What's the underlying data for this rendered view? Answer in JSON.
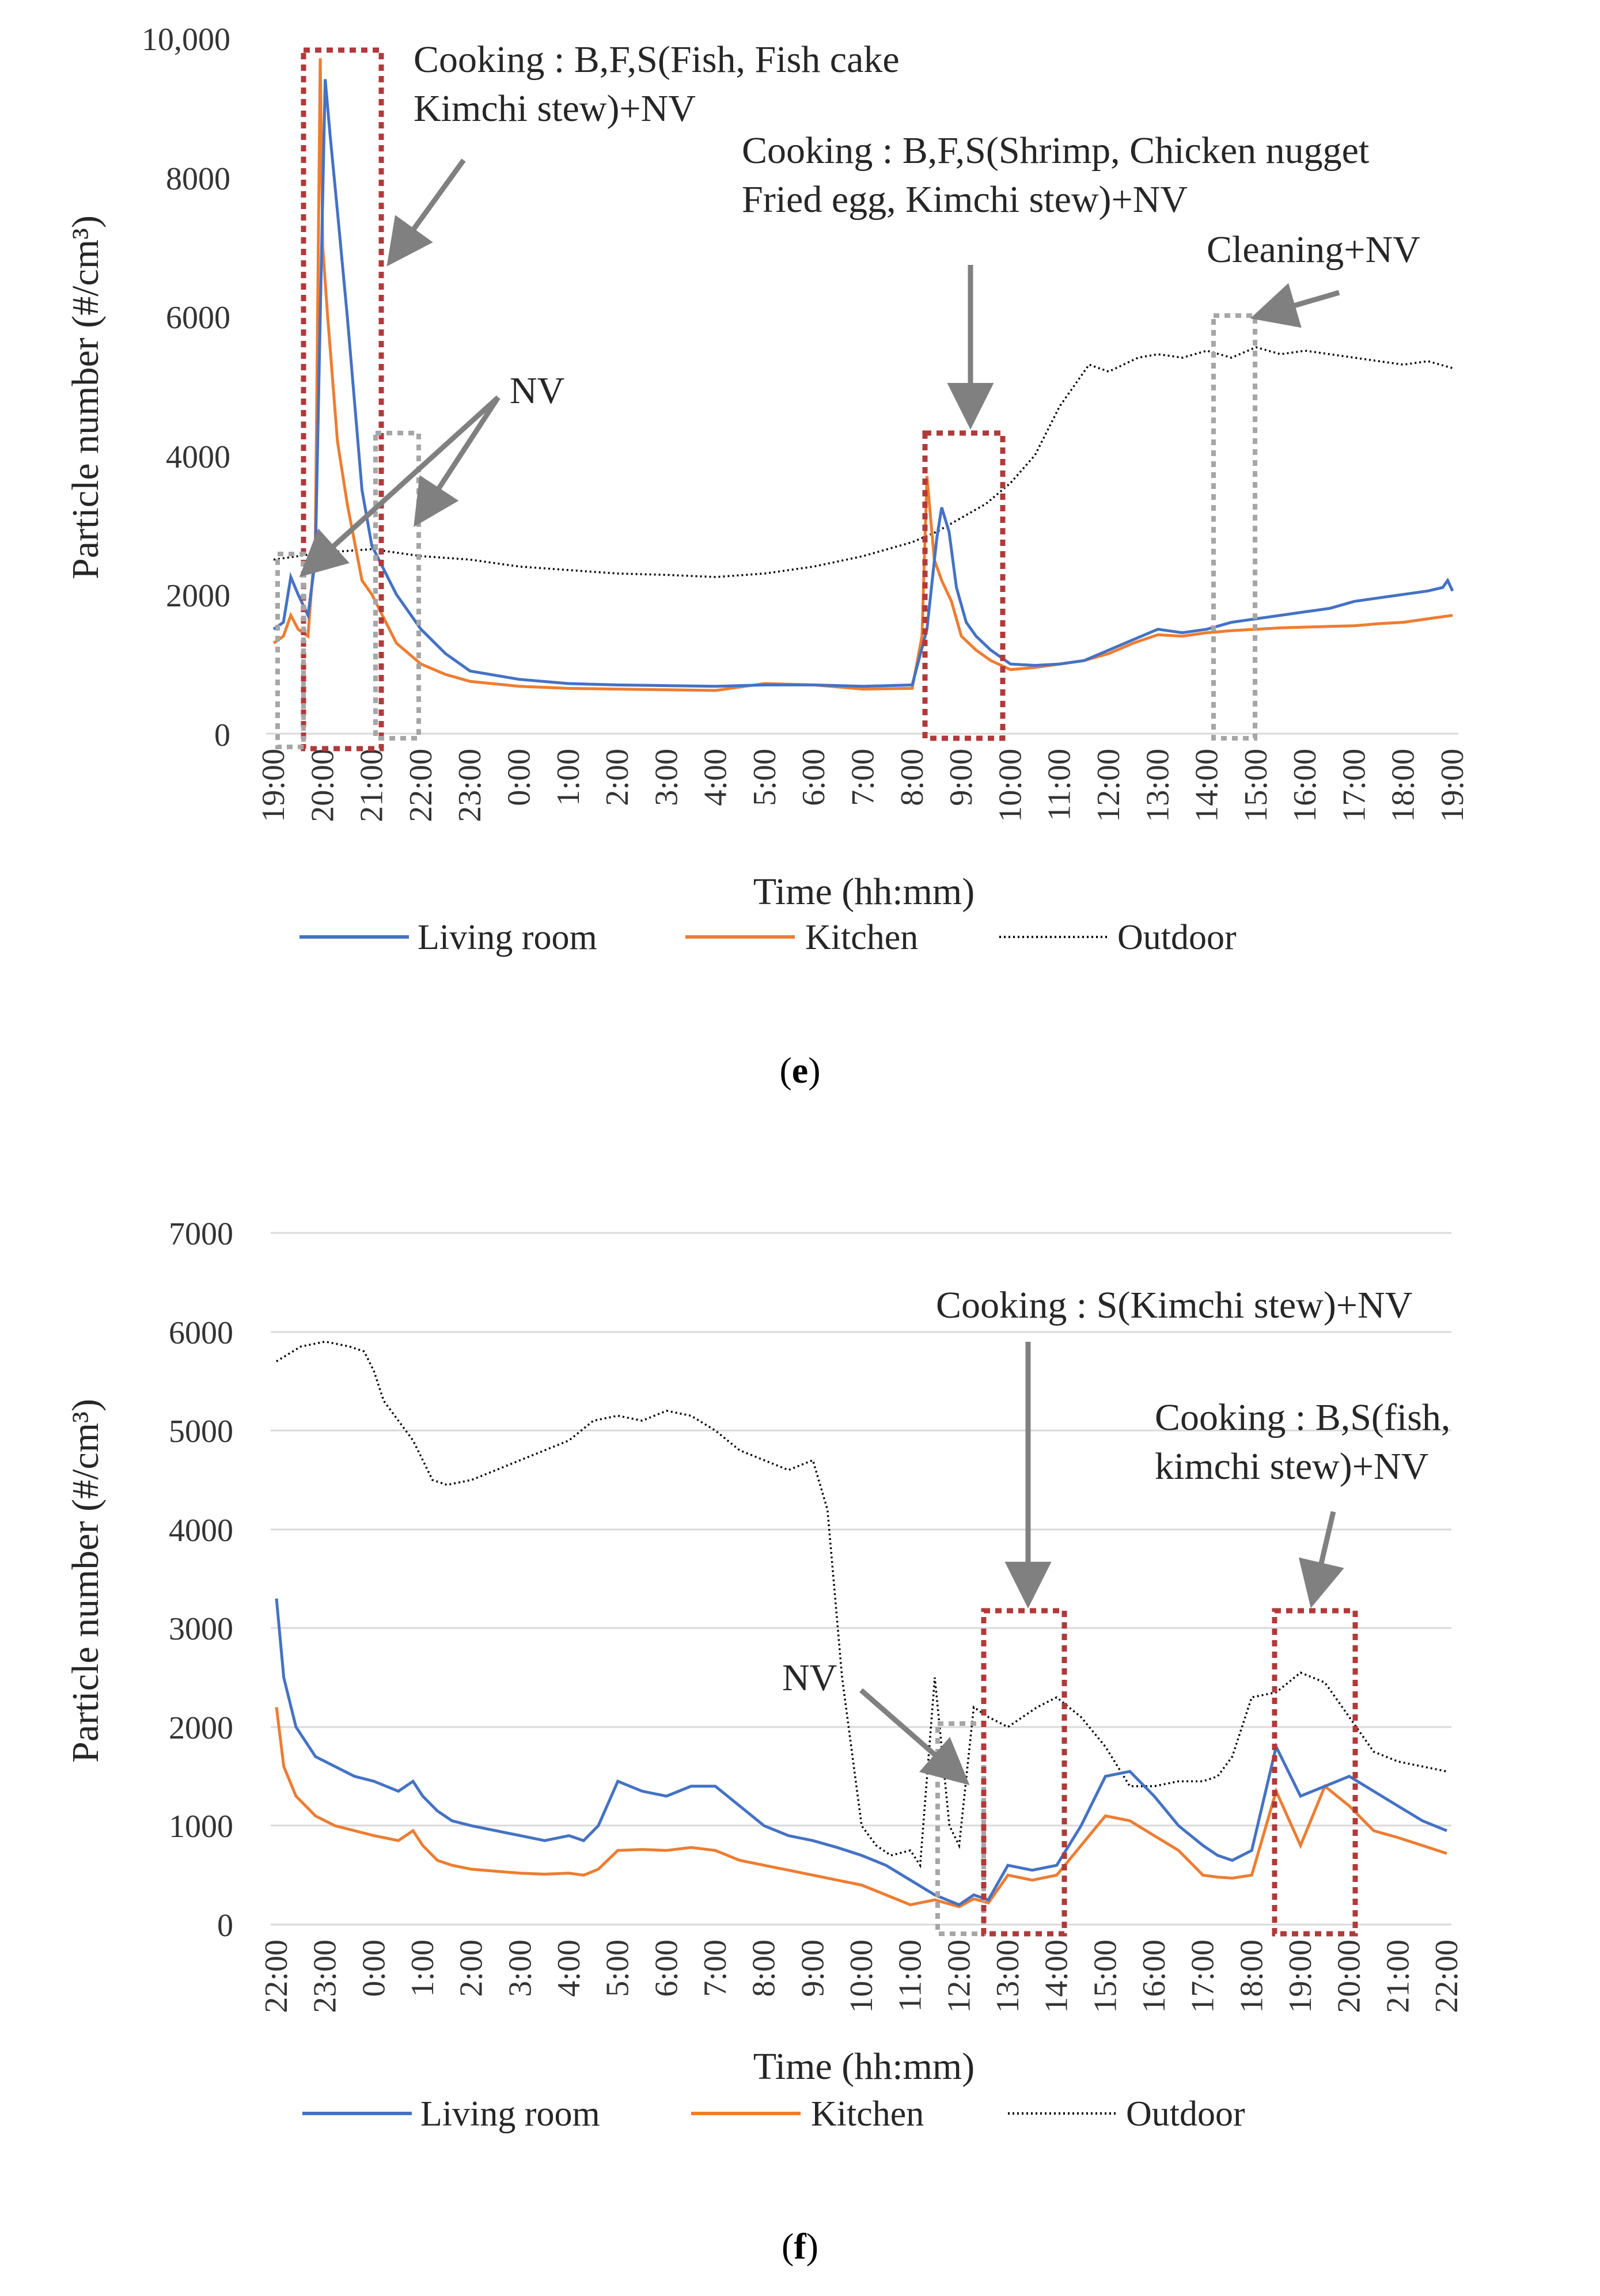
{
  "chart_data": [
    {
      "panel": "e",
      "type": "line",
      "xlabel": "Time (hh:mm)",
      "ylabel": "Particle number (#/cm³)",
      "y_ticks": [
        "0",
        "2000",
        "4000",
        "6000",
        "8000",
        "10,000"
      ],
      "ylim": [
        0,
        10000
      ],
      "x_ticks": [
        "19:00",
        "20:00",
        "21:00",
        "22:00",
        "23:00",
        "0:00",
        "1:00",
        "2:00",
        "3:00",
        "4:00",
        "5:00",
        "6:00",
        "7:00",
        "8:00",
        "9:00",
        "10:00",
        "11:00",
        "12:00",
        "13:00",
        "14:00",
        "15:00",
        "16:00",
        "17:00",
        "18:00",
        "19:00"
      ],
      "xlim": [
        0,
        24
      ],
      "legend": [
        "Living room",
        "Kitchen",
        "Outdoor"
      ],
      "series": [
        {
          "name": "Living room",
          "color": "#4472C4",
          "dash": "solid",
          "x": [
            0,
            0.2,
            0.35,
            0.5,
            0.7,
            0.85,
            0.95,
            1.05,
            1.15,
            1.3,
            1.5,
            1.8,
            2,
            2.5,
            3,
            3.5,
            4,
            5,
            6,
            7,
            8,
            9,
            10,
            11,
            12,
            13,
            13.3,
            13.5,
            13.6,
            13.75,
            13.9,
            14.1,
            14.3,
            14.6,
            15,
            15.5,
            16,
            16.5,
            17,
            17.5,
            18,
            18.5,
            19,
            19.5,
            20,
            20.5,
            21,
            21.5,
            22,
            22.5,
            23,
            23.5,
            23.8,
            23.9,
            24
          ],
          "y": [
            1500,
            1600,
            2250,
            2000,
            1700,
            2500,
            6000,
            9400,
            8600,
            7500,
            6000,
            3500,
            2700,
            2000,
            1500,
            1150,
            900,
            780,
            720,
            700,
            690,
            680,
            700,
            700,
            680,
            700,
            1500,
            2800,
            3250,
            2900,
            2100,
            1600,
            1400,
            1200,
            1000,
            980,
            1000,
            1050,
            1200,
            1350,
            1500,
            1450,
            1500,
            1600,
            1650,
            1700,
            1750,
            1800,
            1900,
            1950,
            2000,
            2050,
            2100,
            2200,
            2050
          ]
        },
        {
          "name": "Kitchen",
          "color": "#ED7D31",
          "dash": "solid",
          "x": [
            0,
            0.2,
            0.35,
            0.5,
            0.7,
            0.85,
            0.95,
            1.0,
            1.1,
            1.3,
            1.5,
            1.8,
            2,
            2.5,
            3,
            3.5,
            4,
            5,
            6,
            7,
            8,
            9,
            10,
            11,
            12,
            13,
            13.2,
            13.3,
            13.45,
            13.6,
            13.8,
            14,
            14.3,
            14.6,
            15,
            15.5,
            16,
            16.5,
            17,
            17.5,
            18,
            18.5,
            19,
            19.5,
            20,
            20.5,
            21,
            21.5,
            22,
            22.5,
            23,
            23.5,
            24
          ],
          "y": [
            1300,
            1400,
            1700,
            1500,
            1400,
            2800,
            9700,
            7000,
            6000,
            4200,
            3300,
            2200,
            2000,
            1300,
            1000,
            850,
            750,
            680,
            650,
            640,
            630,
            620,
            720,
            700,
            640,
            650,
            1400,
            3700,
            2500,
            2200,
            1900,
            1400,
            1200,
            1050,
            920,
            950,
            1000,
            1050,
            1150,
            1300,
            1420,
            1400,
            1450,
            1480,
            1500,
            1520,
            1530,
            1540,
            1550,
            1580,
            1600,
            1650,
            1700
          ]
        },
        {
          "name": "Outdoor",
          "color": "#000000",
          "dash": "dotted",
          "x": [
            0,
            1,
            2,
            3,
            4,
            5,
            6,
            7,
            8,
            9,
            10,
            11,
            12,
            12.5,
            13,
            13.5,
            14,
            14.5,
            15,
            15.5,
            16,
            16.3,
            16.6,
            17,
            17.3,
            17.6,
            18,
            18.5,
            19,
            19.5,
            20,
            20.5,
            21,
            21.5,
            22,
            22.5,
            23,
            23.5,
            24
          ],
          "y": [
            2500,
            2600,
            2650,
            2550,
            2500,
            2400,
            2350,
            2300,
            2280,
            2250,
            2300,
            2400,
            2550,
            2650,
            2750,
            2900,
            3100,
            3300,
            3600,
            4000,
            4700,
            5000,
            5300,
            5200,
            5300,
            5400,
            5450,
            5400,
            5500,
            5400,
            5550,
            5450,
            5500,
            5450,
            5400,
            5350,
            5300,
            5350,
            5250
          ]
        }
      ],
      "annotations": [
        {
          "lines": [
            "Cooking : B,F,S(Fish, Fish cake",
            "Kimchi stew)+NV"
          ]
        },
        {
          "lines": [
            "Cooking : B,F,S(Shrimp, Chicken nugget",
            "Fried egg, Kimchi stew)+NV"
          ]
        },
        {
          "lines": [
            "Cleaning+NV"
          ]
        },
        {
          "lines": [
            "NV"
          ]
        }
      ]
    },
    {
      "panel": "f",
      "type": "line",
      "xlabel": "Time (hh:mm)",
      "ylabel": "Particle number (#/cm³)",
      "y_ticks": [
        "0",
        "1000",
        "2000",
        "3000",
        "4000",
        "5000",
        "6000",
        "7000"
      ],
      "ylim": [
        0,
        7000
      ],
      "x_ticks": [
        "22:00",
        "23:00",
        "0:00",
        "1:00",
        "2:00",
        "3:00",
        "4:00",
        "5:00",
        "6:00",
        "7:00",
        "8:00",
        "9:00",
        "10:00",
        "11:00",
        "12:00",
        "13:00",
        "14:00",
        "15:00",
        "16:00",
        "17:00",
        "18:00",
        "19:00",
        "20:00",
        "21:00",
        "22:00"
      ],
      "xlim": [
        0,
        24
      ],
      "legend": [
        "Living room",
        "Kitchen",
        "Outdoor"
      ],
      "series": [
        {
          "name": "Living room",
          "color": "#4472C4",
          "dash": "solid",
          "x": [
            0,
            0.15,
            0.4,
            0.8,
            1.2,
            1.6,
            2,
            2.5,
            2.8,
            3,
            3.3,
            3.6,
            4,
            4.5,
            5,
            5.5,
            6,
            6.3,
            6.6,
            7,
            7.5,
            8,
            8.5,
            9,
            9.5,
            10,
            10.5,
            11,
            11.5,
            12,
            12.5,
            13,
            13.5,
            14,
            14.3,
            14.6,
            15,
            15.5,
            16,
            16.5,
            17,
            17.5,
            18,
            18.5,
            19,
            19.3,
            19.6,
            20,
            20.5,
            21,
            21.5,
            22,
            22.5,
            23,
            23.5,
            24
          ],
          "y": [
            3300,
            2500,
            2000,
            1700,
            1600,
            1500,
            1450,
            1350,
            1450,
            1300,
            1150,
            1050,
            1000,
            950,
            900,
            850,
            900,
            850,
            1000,
            1450,
            1350,
            1300,
            1400,
            1400,
            1200,
            1000,
            900,
            850,
            780,
            700,
            600,
            450,
            300,
            200,
            300,
            250,
            600,
            550,
            600,
            1000,
            1500,
            1550,
            1300,
            1000,
            800,
            700,
            650,
            750,
            1800,
            1300,
            1400,
            1500,
            1350,
            1200,
            1050,
            950
          ]
        },
        {
          "name": "Kitchen",
          "color": "#ED7D31",
          "dash": "solid",
          "x": [
            0,
            0.15,
            0.4,
            0.8,
            1.2,
            1.6,
            2,
            2.5,
            2.8,
            3,
            3.3,
            3.6,
            4,
            4.5,
            5,
            5.5,
            6,
            6.3,
            6.6,
            7,
            7.5,
            8,
            8.5,
            9,
            9.5,
            10,
            10.5,
            11,
            11.5,
            12,
            12.5,
            13,
            13.5,
            14,
            14.3,
            14.6,
            15,
            15.5,
            16,
            16.5,
            17,
            17.5,
            18,
            18.5,
            19,
            19.3,
            19.6,
            20,
            20.5,
            21,
            21.5,
            22,
            22.5,
            23,
            23.5,
            24
          ],
          "y": [
            2200,
            1600,
            1300,
            1100,
            1000,
            950,
            900,
            850,
            950,
            800,
            650,
            600,
            560,
            540,
            520,
            510,
            520,
            500,
            560,
            750,
            760,
            750,
            780,
            750,
            650,
            600,
            550,
            500,
            450,
            400,
            300,
            200,
            250,
            180,
            260,
            220,
            500,
            450,
            500,
            800,
            1100,
            1050,
            900,
            750,
            500,
            480,
            470,
            500,
            1350,
            800,
            1400,
            1200,
            950,
            880,
            800,
            720
          ]
        },
        {
          "name": "Outdoor",
          "color": "#000000",
          "dash": "dotted",
          "x": [
            0,
            0.5,
            1,
            1.5,
            1.8,
            2,
            2.2,
            2.5,
            2.8,
            3,
            3.2,
            3.5,
            4,
            4.5,
            5,
            5.5,
            6,
            6.5,
            7,
            7.5,
            8,
            8.5,
            9,
            9.5,
            10,
            10.5,
            11,
            11.3,
            11.6,
            12,
            12.3,
            12.6,
            13,
            13.2,
            13.5,
            13.8,
            14,
            14.3,
            14.6,
            15,
            15.3,
            15.6,
            16,
            16.5,
            17,
            17.5,
            18,
            18.5,
            19,
            19.3,
            19.6,
            20,
            20.5,
            21,
            21.5,
            22,
            22.5,
            23,
            23.5,
            24
          ],
          "y": [
            5700,
            5850,
            5900,
            5850,
            5800,
            5600,
            5300,
            5100,
            4900,
            4700,
            4500,
            4450,
            4500,
            4600,
            4700,
            4800,
            4900,
            5100,
            5150,
            5100,
            5200,
            5150,
            5000,
            4800,
            4700,
            4600,
            4700,
            4200,
            2500,
            1000,
            800,
            700,
            750,
            600,
            2500,
            1000,
            800,
            2200,
            2100,
            2000,
            2100,
            2200,
            2300,
            2100,
            1800,
            1400,
            1400,
            1450,
            1450,
            1500,
            1700,
            2300,
            2350,
            2550,
            2450,
            2100,
            1750,
            1650,
            1600,
            1550
          ]
        }
      ],
      "annotations": [
        {
          "lines": [
            "Cooking : S(Kimchi stew)+NV"
          ]
        },
        {
          "lines": [
            "Cooking : B,S(fish,",
            "kimchi stew)+NV"
          ]
        },
        {
          "lines": [
            "NV"
          ]
        }
      ]
    }
  ],
  "panel_labels": [
    {
      "open": "(",
      "letter": "e",
      "close": ")"
    },
    {
      "open": "(",
      "letter": "f",
      "close": ")"
    }
  ]
}
